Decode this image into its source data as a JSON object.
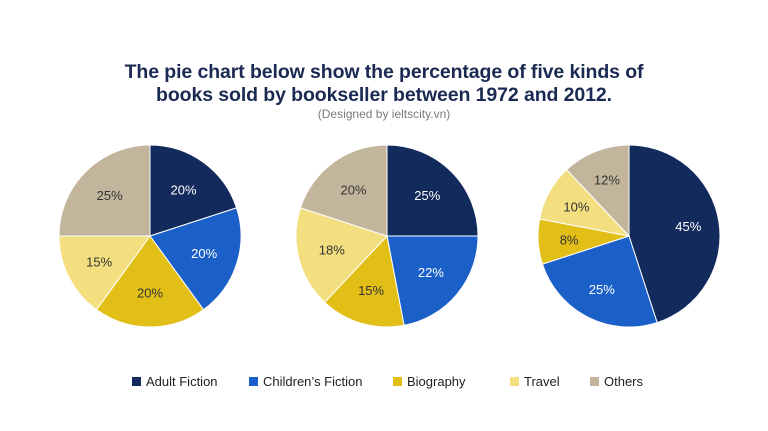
{
  "title_line1": "The pie chart below show the percentage of five kinds of",
  "title_line2": "books sold by bookseller between 1972 and 2012.",
  "subtitle": "(Designed by ieltscity.vn)",
  "colors": {
    "adult_fiction": "#132a5c",
    "childrens_fiction": "#1b5fc8",
    "biography": "#e2bf17",
    "travel": "#f4df80",
    "others": "#c2b59b",
    "title": "#1a2a52"
  },
  "chart_data": [
    {
      "type": "pie",
      "title": "",
      "labels": [
        "Adult Fiction",
        "Children's Fiction",
        "Biography",
        "Travel",
        "Others"
      ],
      "values": [
        20,
        20,
        20,
        15,
        25
      ],
      "value_labels": [
        "20%",
        "20%",
        "20%",
        "15%",
        "25%"
      ]
    },
    {
      "type": "pie",
      "title": "",
      "labels": [
        "Adult Fiction",
        "Children's Fiction",
        "Biography",
        "Travel",
        "Others"
      ],
      "values": [
        25,
        22,
        15,
        18,
        20
      ],
      "value_labels": [
        "25%",
        "22%",
        "15%",
        "18%",
        "20%"
      ]
    },
    {
      "type": "pie",
      "title": "",
      "labels": [
        "Adult Fiction",
        "Children's Fiction",
        "Biography",
        "Travel",
        "Others"
      ],
      "values": [
        45,
        25,
        8,
        10,
        12
      ],
      "value_labels": [
        "45%",
        "25%",
        "8%",
        "10%",
        "12%"
      ]
    }
  ],
  "legend": [
    {
      "label": "Adult Fiction",
      "color": "#132a5c"
    },
    {
      "label": "Children’s Fiction",
      "color": "#1b5fc8"
    },
    {
      "label": "Biography",
      "color": "#e2bf17"
    },
    {
      "label": "Travel",
      "color": "#f4df80"
    },
    {
      "label": "Others",
      "color": "#c2b59b"
    }
  ]
}
